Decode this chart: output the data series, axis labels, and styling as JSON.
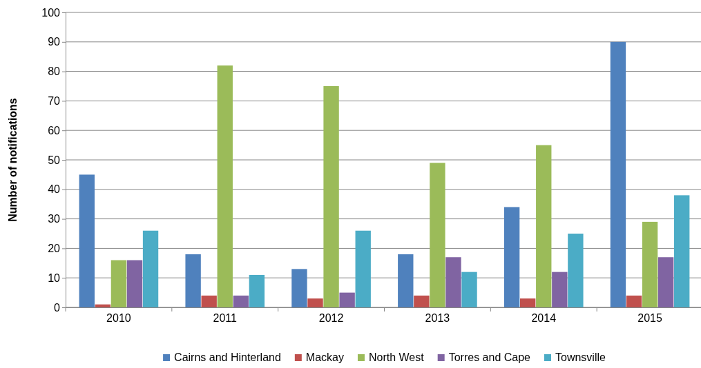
{
  "chart_data": {
    "type": "bar",
    "ylabel": "Number of notifications",
    "categories": [
      "2010",
      "2011",
      "2012",
      "2013",
      "2014",
      "2015"
    ],
    "series": [
      {
        "name": "Cairns and Hinterland",
        "color": "#4f81bd",
        "values": [
          45,
          18,
          13,
          18,
          34,
          90
        ]
      },
      {
        "name": "Mackay",
        "color": "#c0504d",
        "values": [
          1,
          4,
          3,
          4,
          3,
          4
        ]
      },
      {
        "name": "North West",
        "color": "#9bbb59",
        "values": [
          16,
          82,
          75,
          49,
          55,
          29
        ]
      },
      {
        "name": "Torres and Cape",
        "color": "#8064a2",
        "values": [
          16,
          4,
          5,
          17,
          12,
          17
        ]
      },
      {
        "name": "Townsville",
        "color": "#4bacc6",
        "values": [
          26,
          11,
          26,
          12,
          25,
          38
        ]
      }
    ],
    "ylim": [
      0,
      100
    ],
    "yticks": [
      0,
      10,
      20,
      30,
      40,
      50,
      60,
      70,
      80,
      90,
      100
    ],
    "grid": "y",
    "legend": "bottom"
  }
}
